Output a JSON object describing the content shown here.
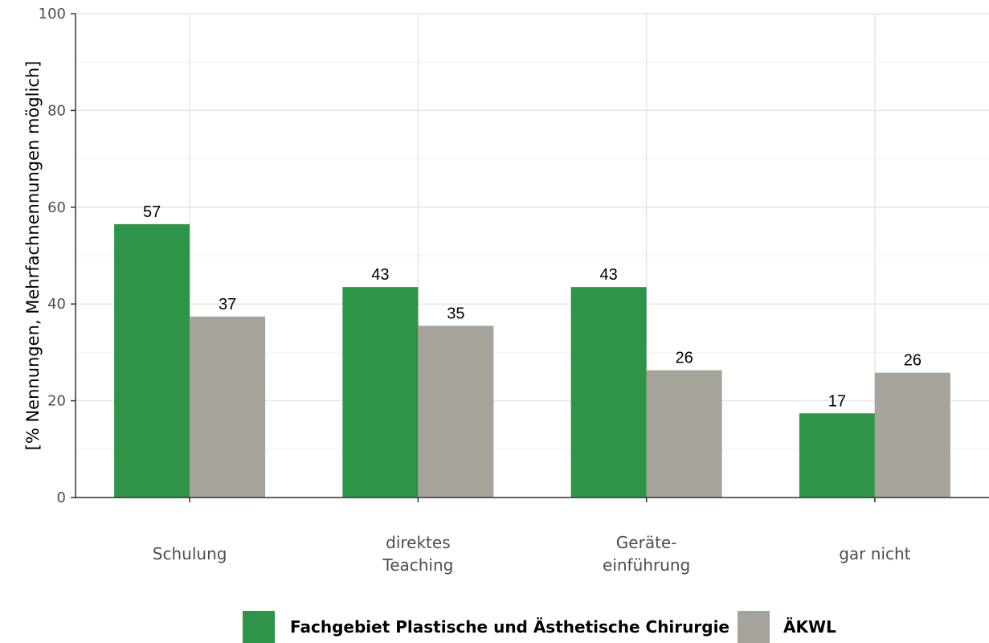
{
  "chart_data": {
    "type": "bar",
    "title": "",
    "xlabel": "",
    "ylabel": "[% Nennungen, Mehrfachnennungen möglich]",
    "ylim": [
      0,
      100
    ],
    "yticks": [
      0,
      20,
      40,
      60,
      80,
      100
    ],
    "grid": true,
    "legend_position": "bottom",
    "categories": [
      [
        "Schulung"
      ],
      [
        "direktes",
        "Teaching"
      ],
      [
        "Geräte-",
        "einführung"
      ],
      [
        "gar nicht"
      ]
    ],
    "series": [
      {
        "name": "Fachgebiet Plastische und Ästhetische Chirurgie",
        "color": "#2e9447",
        "values": [
          56.5,
          43.5,
          43.5,
          17.4
        ],
        "labels": [
          "57",
          "43",
          "43",
          "17"
        ]
      },
      {
        "name": "ÄKWL",
        "color": "#a6a39b",
        "values": [
          37.4,
          35.5,
          26.3,
          25.8
        ],
        "labels": [
          "37",
          "35",
          "26",
          "26"
        ]
      }
    ]
  }
}
